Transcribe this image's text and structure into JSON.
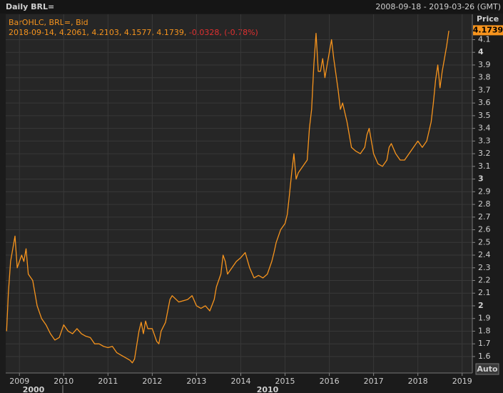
{
  "chart_data": {
    "type": "line",
    "title": "Daily BRL=",
    "date_range": "2008-09-18 - 2019-03-26 (GMT)",
    "legend_title": "BarOHLC, BRL=, Bid",
    "legend_ohlc": "2018-09-14, 4.2061, 4.2103, 4.1577, 4.1739,",
    "legend_change": "-0.0328, (-0.78%)",
    "y_axis_label": "Price",
    "auto_button": "Auto",
    "decade_labels": [
      "2000",
      "2010"
    ],
    "last_price": 4.1739,
    "color": "#f7941d",
    "grid": true,
    "xlim": [
      2008.69,
      2019.23
    ],
    "xticks": [
      2009,
      2010,
      2011,
      2012,
      2013,
      2014,
      2015,
      2016,
      2017,
      2018,
      2019
    ],
    "ylim": [
      1.47,
      4.3
    ],
    "yticks": [
      1.6,
      1.7,
      1.8,
      1.9,
      2,
      2.1,
      2.2,
      2.3,
      2.4,
      2.5,
      2.6,
      2.7,
      2.8,
      2.9,
      3,
      3.1,
      3.2,
      3.3,
      3.4,
      3.5,
      3.6,
      3.7,
      3.8,
      3.9,
      4,
      4.1
    ],
    "x": [
      2008.71,
      2008.75,
      2008.8,
      2008.85,
      2008.9,
      2008.95,
      2009.0,
      2009.05,
      2009.1,
      2009.15,
      2009.2,
      2009.3,
      2009.4,
      2009.5,
      2009.6,
      2009.7,
      2009.8,
      2009.9,
      2010.0,
      2010.1,
      2010.2,
      2010.3,
      2010.4,
      2010.5,
      2010.6,
      2010.7,
      2010.8,
      2010.9,
      2011.0,
      2011.1,
      2011.2,
      2011.3,
      2011.4,
      2011.5,
      2011.55,
      2011.6,
      2011.7,
      2011.75,
      2011.8,
      2011.85,
      2011.9,
      2012.0,
      2012.1,
      2012.15,
      2012.2,
      2012.3,
      2012.4,
      2012.45,
      2012.6,
      2012.8,
      2012.9,
      2013.0,
      2013.1,
      2013.2,
      2013.3,
      2013.4,
      2013.45,
      2013.55,
      2013.6,
      2013.65,
      2013.7,
      2013.8,
      2013.9,
      2014.0,
      2014.1,
      2014.2,
      2014.3,
      2014.4,
      2014.5,
      2014.6,
      2014.7,
      2014.75,
      2014.8,
      2014.9,
      2015.0,
      2015.05,
      2015.1,
      2015.15,
      2015.2,
      2015.25,
      2015.3,
      2015.4,
      2015.5,
      2015.55,
      2015.6,
      2015.65,
      2015.7,
      2015.75,
      2015.8,
      2015.85,
      2015.9,
      2016.0,
      2016.05,
      2016.1,
      2016.2,
      2016.25,
      2016.3,
      2016.4,
      2016.5,
      2016.6,
      2016.7,
      2016.8,
      2016.85,
      2016.9,
      2016.95,
      2017.0,
      2017.1,
      2017.2,
      2017.3,
      2017.35,
      2017.4,
      2017.5,
      2017.6,
      2017.7,
      2017.8,
      2017.9,
      2018.0,
      2018.1,
      2018.2,
      2018.3,
      2018.35,
      2018.4,
      2018.45,
      2018.5,
      2018.55,
      2018.6,
      2018.65,
      2018.7
    ],
    "values": [
      1.8,
      2.1,
      2.35,
      2.45,
      2.55,
      2.3,
      2.35,
      2.4,
      2.35,
      2.45,
      2.25,
      2.2,
      2.0,
      1.9,
      1.85,
      1.78,
      1.73,
      1.75,
      1.85,
      1.8,
      1.78,
      1.82,
      1.78,
      1.76,
      1.75,
      1.7,
      1.7,
      1.68,
      1.67,
      1.68,
      1.63,
      1.61,
      1.59,
      1.57,
      1.55,
      1.58,
      1.8,
      1.87,
      1.78,
      1.88,
      1.82,
      1.82,
      1.72,
      1.7,
      1.8,
      1.87,
      2.05,
      2.08,
      2.03,
      2.05,
      2.08,
      2.0,
      1.98,
      2.0,
      1.96,
      2.05,
      2.15,
      2.25,
      2.4,
      2.35,
      2.25,
      2.3,
      2.35,
      2.38,
      2.42,
      2.3,
      2.22,
      2.24,
      2.22,
      2.25,
      2.35,
      2.42,
      2.5,
      2.6,
      2.65,
      2.72,
      2.88,
      3.05,
      3.2,
      3.0,
      3.05,
      3.1,
      3.15,
      3.4,
      3.55,
      3.9,
      4.15,
      3.85,
      3.85,
      3.95,
      3.8,
      4.0,
      4.1,
      3.95,
      3.7,
      3.55,
      3.6,
      3.45,
      3.25,
      3.22,
      3.2,
      3.25,
      3.35,
      3.4,
      3.3,
      3.2,
      3.12,
      3.1,
      3.15,
      3.25,
      3.28,
      3.2,
      3.15,
      3.15,
      3.2,
      3.25,
      3.3,
      3.25,
      3.3,
      3.45,
      3.6,
      3.78,
      3.9,
      3.72,
      3.85,
      3.95,
      4.05,
      4.17
    ]
  }
}
